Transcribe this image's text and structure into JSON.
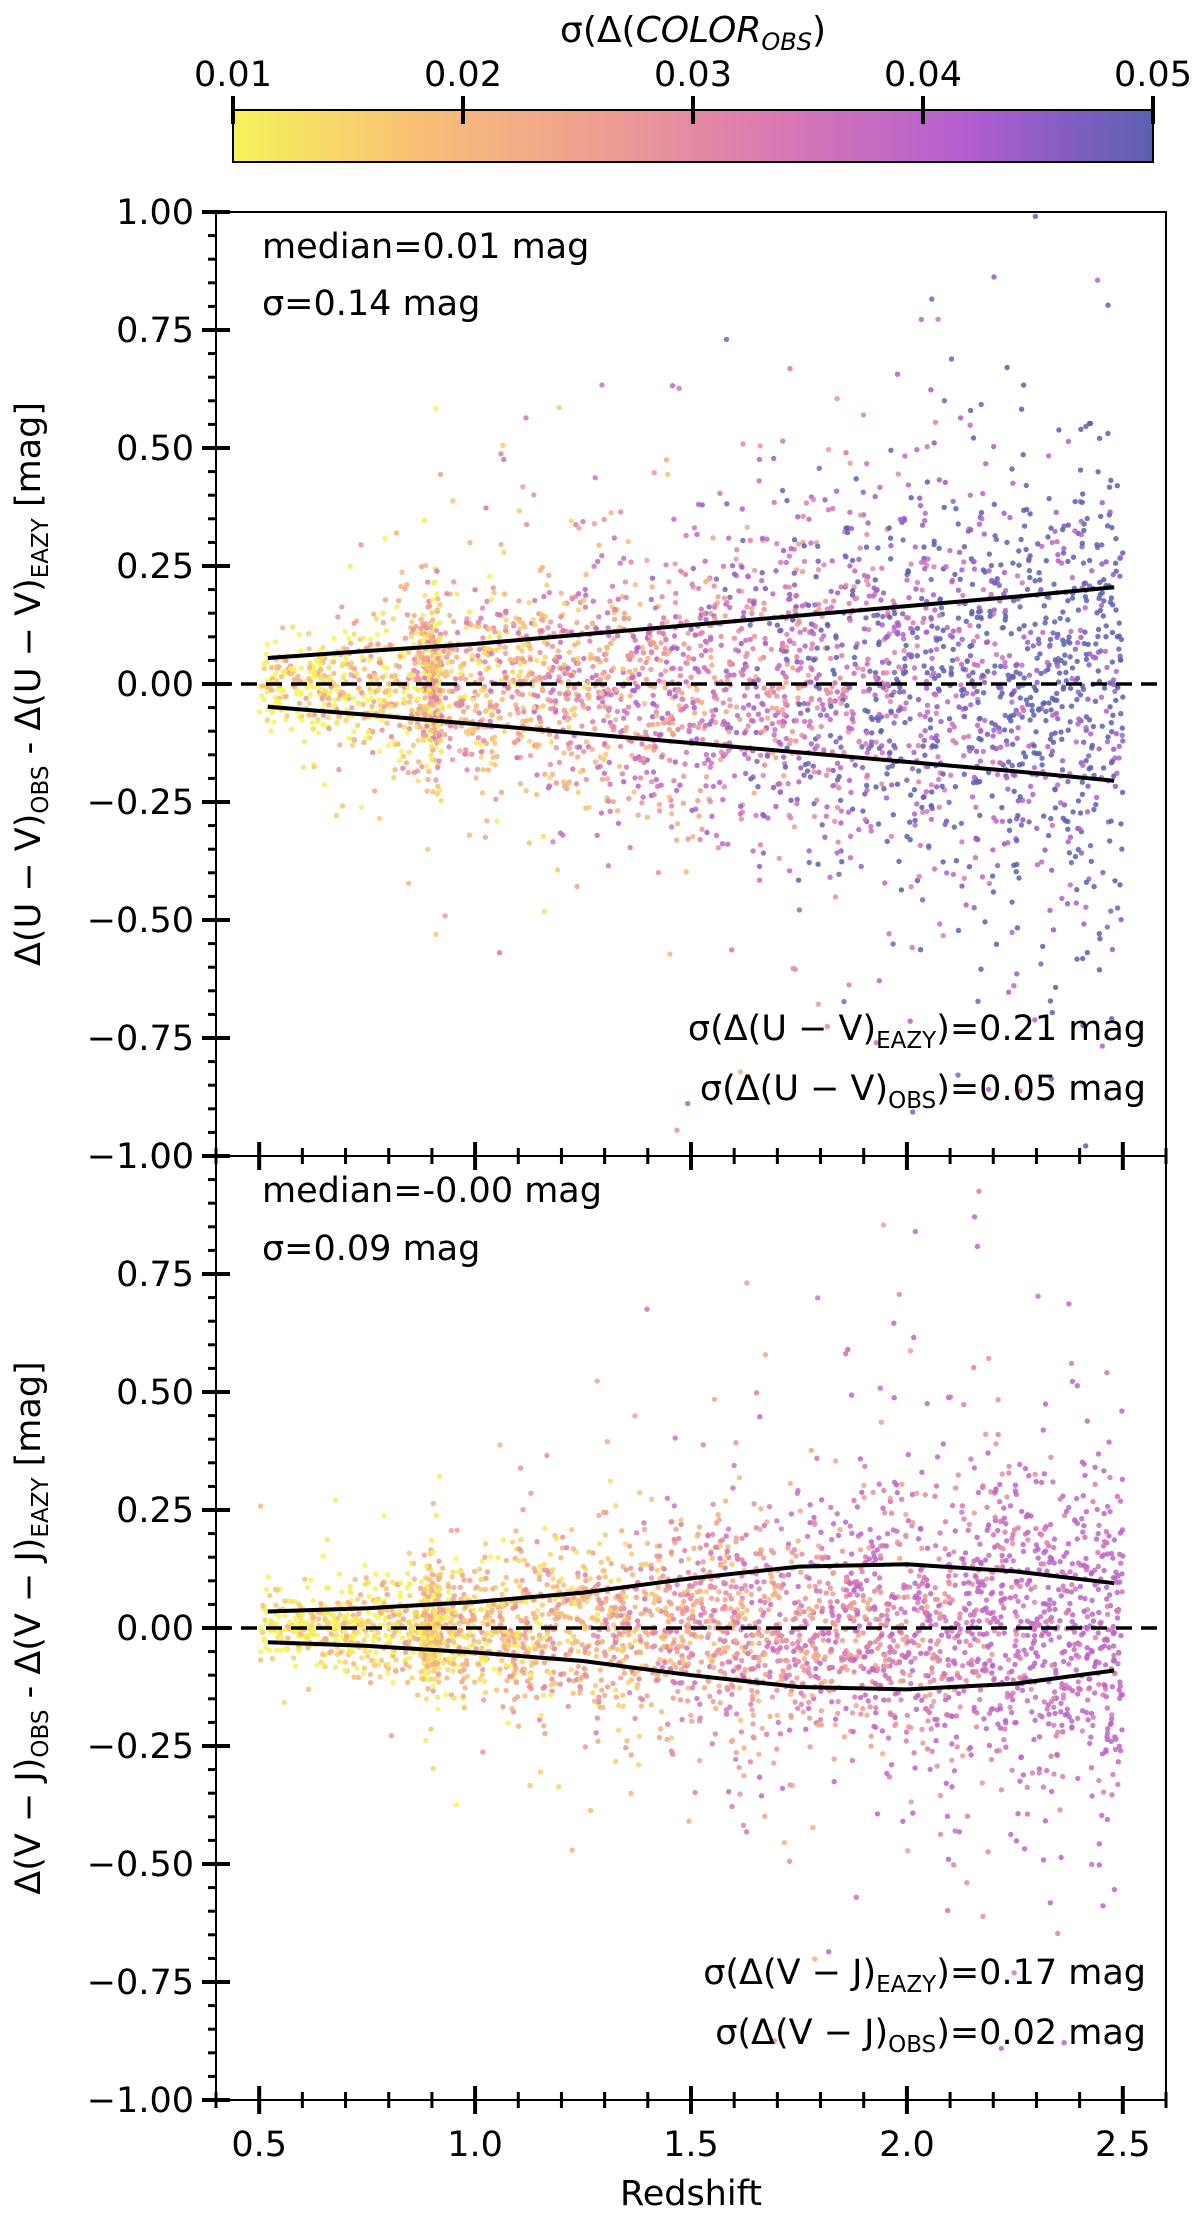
{
  "colorbar": {
    "label": "σ(Δ(COLOR)_OBS)",
    "label_main": "σ(Δ(",
    "label_italic": "COLOR",
    "label_close": ")",
    "label_sub": "OBS",
    "ticks": [
      "0.01",
      "0.02",
      "0.03",
      "0.04",
      "0.05"
    ],
    "range": [
      0.01,
      0.05
    ],
    "stops": [
      "#f5f35c",
      "#f8c074",
      "#ee9e92",
      "#d778b4",
      "#b25ed0",
      "#5b5fb0"
    ]
  },
  "chart_data": [
    {
      "type": "scatter",
      "panel": "top",
      "xlim": [
        0.4,
        2.6
      ],
      "ylim": [
        -1.0,
        1.0
      ],
      "xticks": [
        "0.5",
        "1.0",
        "1.5",
        "2.0",
        "2.5"
      ],
      "yticks": [
        "−1.00",
        "−0.75",
        "−0.50",
        "−0.25",
        "0.00",
        "0.25",
        "0.50",
        "0.75",
        "1.00"
      ],
      "ylabel": "Δ(U − V)_OBS - Δ(U − V)_EAZY [mag]",
      "ylabel_parts": {
        "pre": "Δ(U − V)",
        "sub1": "OBS",
        "mid": " - Δ(U − V)",
        "sub2": "EAZY",
        "post": " [mag]"
      },
      "stats": {
        "median": "median=0.01 mag",
        "sigma": "σ=0.14 mag"
      },
      "sigma_eazy": "σ(Δ(U − V)_EAZY)=0.21 mag",
      "sigma_obs": "σ(Δ(U − V)_OBS)=0.05 mag",
      "sigma_eazy_parts": {
        "pre": "σ(Δ(U − V)",
        "sub": "EAZY",
        "post": ")=0.21 mag"
      },
      "sigma_obs_parts": {
        "pre": "σ(Δ(U − V)",
        "sub": "OBS",
        "post": ")=0.05 mag"
      },
      "reference_line": 0.0,
      "envelope": {
        "x": [
          0.52,
          0.75,
          1.0,
          1.25,
          1.5,
          1.75,
          2.0,
          2.25,
          2.48
        ],
        "upper": [
          0.055,
          0.07,
          0.085,
          0.105,
          0.125,
          0.145,
          0.165,
          0.185,
          0.205
        ],
        "lower": [
          -0.048,
          -0.065,
          -0.085,
          -0.105,
          -0.125,
          -0.145,
          -0.165,
          -0.185,
          -0.205
        ]
      },
      "scatter_model": {
        "n_points": 3600,
        "x_range": [
          0.5,
          2.5
        ],
        "spread_at_z0_5": 0.04,
        "spread_at_z2_5": 0.28,
        "color_err_at_z0_5": 0.012,
        "color_err_at_z2_5": 0.05
      }
    },
    {
      "type": "scatter",
      "panel": "bottom",
      "xlim": [
        0.4,
        2.6
      ],
      "ylim": [
        -1.0,
        1.0
      ],
      "xticks": [
        "0.5",
        "1.0",
        "1.5",
        "2.0",
        "2.5"
      ],
      "yticks": [
        "−1.00",
        "−0.75",
        "−0.50",
        "−0.25",
        "0.00",
        "0.25",
        "0.50",
        "0.75",
        "1.00"
      ],
      "xlabel": "Redshift",
      "ylabel": "Δ(V − J)_OBS - Δ(V − J)_EAZY [mag]",
      "ylabel_parts": {
        "pre": "Δ(V − J)",
        "sub1": "OBS",
        "mid": " - Δ(V − J)",
        "sub2": "EAZY",
        "post": " [mag]"
      },
      "stats": {
        "median": "median=-0.00 mag",
        "sigma": "σ=0.09 mag"
      },
      "sigma_eazy": "σ(Δ(V − J)_EAZY)=0.17 mag",
      "sigma_obs": "σ(Δ(V − J)_OBS)=0.02 mag",
      "sigma_eazy_parts": {
        "pre": "σ(Δ(V − J)",
        "sub": "EAZY",
        "post": ")=0.17 mag"
      },
      "sigma_obs_parts": {
        "pre": "σ(Δ(V − J)",
        "sub": "OBS",
        "post": ")=0.02 mag"
      },
      "reference_line": 0.0,
      "envelope": {
        "x": [
          0.52,
          0.75,
          1.0,
          1.25,
          1.5,
          1.75,
          2.0,
          2.25,
          2.48
        ],
        "upper": [
          0.035,
          0.042,
          0.055,
          0.075,
          0.105,
          0.13,
          0.135,
          0.12,
          0.095
        ],
        "lower": [
          -0.03,
          -0.038,
          -0.052,
          -0.07,
          -0.1,
          -0.125,
          -0.13,
          -0.118,
          -0.09
        ]
      },
      "scatter_model": {
        "n_points": 3600,
        "x_range": [
          0.5,
          2.5
        ],
        "spread_at_z0_5": 0.03,
        "spread_at_z2_5": 0.2,
        "color_err_at_z0_5": 0.01,
        "color_err_at_z2_5": 0.04
      }
    }
  ]
}
